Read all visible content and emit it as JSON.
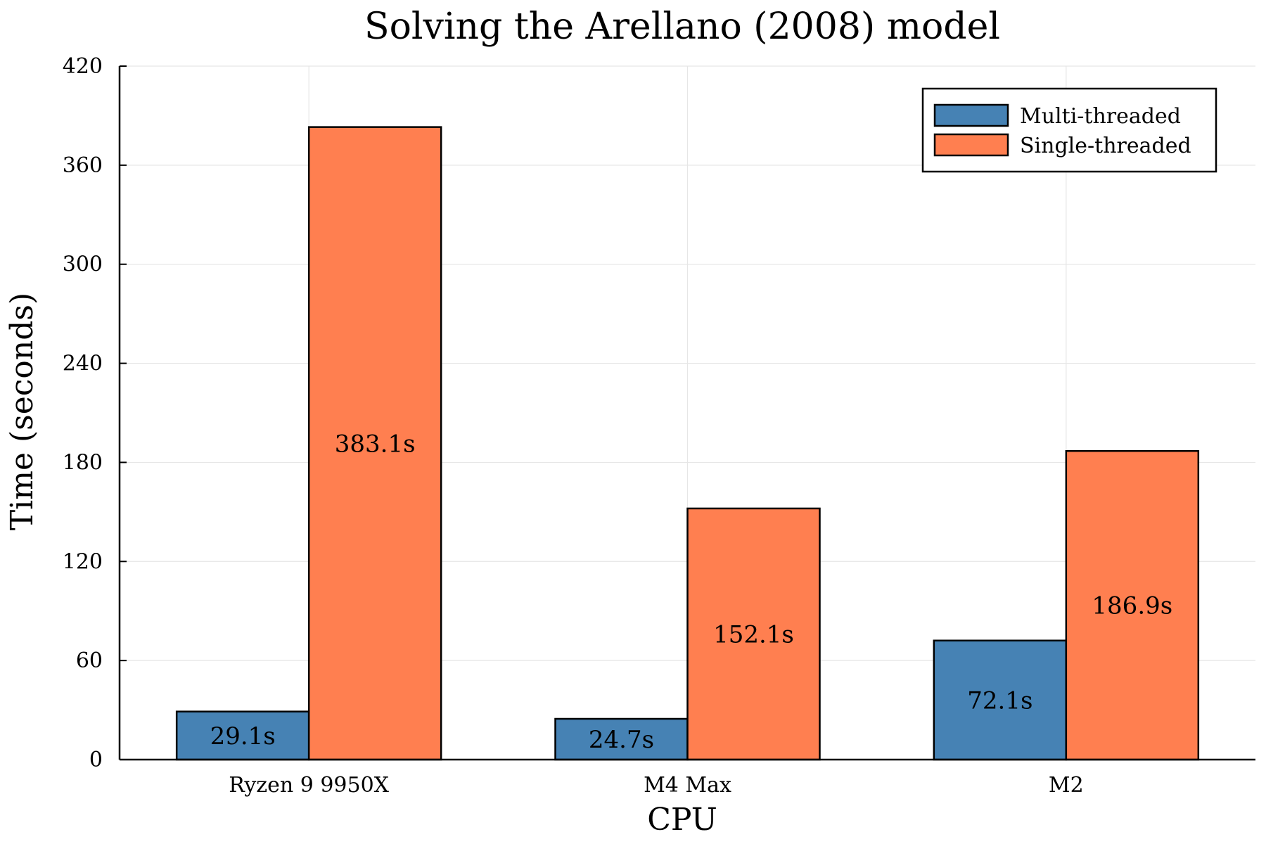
{
  "chart_data": {
    "type": "bar",
    "title": "Solving the Arellano (2008) model",
    "xlabel": "CPU",
    "ylabel": "Time (seconds)",
    "categories": [
      "Ryzen 9 9950X",
      "M4 Max",
      "M2"
    ],
    "ylim": [
      0,
      420
    ],
    "yticks": [
      0,
      60,
      120,
      180,
      240,
      300,
      360,
      420
    ],
    "grid": true,
    "legend_position": "top-right",
    "series": [
      {
        "name": "Multi-threaded",
        "color": "#4682b4",
        "values": [
          29.1,
          24.7,
          72.1
        ],
        "labels": [
          "29.1s",
          "24.7s",
          "72.1s"
        ]
      },
      {
        "name": "Single-threaded",
        "color": "#ff7f50",
        "values": [
          383.1,
          152.1,
          186.9
        ],
        "labels": [
          "383.1s",
          "152.1s",
          "186.9s"
        ]
      }
    ]
  }
}
